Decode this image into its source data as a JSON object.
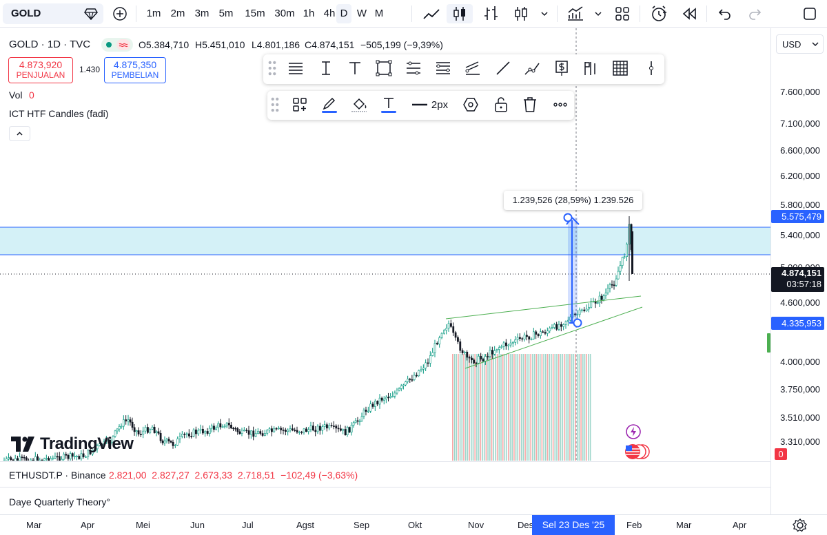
{
  "topbar": {
    "symbol": "GOLD",
    "intervals": [
      "1m",
      "2m",
      "3m",
      "5m",
      "15m",
      "30m",
      "1h",
      "4h",
      "D",
      "W",
      "M"
    ],
    "active_interval": "D"
  },
  "legend": {
    "title": "GOLD · 1D · TVC",
    "open": "O5.384,710",
    "high": "H5.451,010",
    "low": "L4.801,186",
    "close": "C4.874,151",
    "change": "−505,199 (−9,39%)",
    "sell_price": "4.873,920",
    "sell_label": "PENJUALAN",
    "spread": "1.430",
    "buy_price": "4.875,350",
    "buy_label": "PEMBELIAN",
    "vol_label": "Vol",
    "vol_value": "0",
    "indicator": "ICT HTF Candles (fadi)"
  },
  "drawing_toolbar": {
    "width_label": "2px"
  },
  "measure": {
    "label": "1.239,526 (28,59%) 1.239.526"
  },
  "currency": "USD",
  "price_axis": {
    "labels": [
      "7.600,000",
      "7.100,000",
      "6.600,000",
      "6.200,000",
      "5.800,000",
      "5.400,000",
      "5.000,000",
      "4.600,000",
      "4.000,000",
      "3.750,000",
      "3.510,000",
      "3.310,000"
    ],
    "tag_top": "5.575,479",
    "tag_current": "4.874,151",
    "tag_timer": "03:57:18",
    "tag_bottom": "4.335,953",
    "tag_zero": "0"
  },
  "time_axis": {
    "labels": [
      "Mar",
      "Apr",
      "Mei",
      "Jun",
      "Jul",
      "Agst",
      "Sep",
      "Okt",
      "Nov",
      "Des",
      "Feb",
      "Mar",
      "Apr"
    ],
    "crosshair": "Sel 23 Des '25"
  },
  "panels": {
    "eth_title": "ETHUSDT.P · Binance",
    "eth_values": "2.821,00  2.827,27  2.673,33  2.718,51  −102,49 (−3,63%)",
    "daye_title": "Daye Quarterly Theory°"
  },
  "brand": "TradingView",
  "colors": {
    "accent": "#2962ff",
    "up": "#089981",
    "down": "#f23645",
    "zone": "#d4f1f7",
    "zone_line": "#2962ff",
    "trend": "#4caf50"
  }
}
